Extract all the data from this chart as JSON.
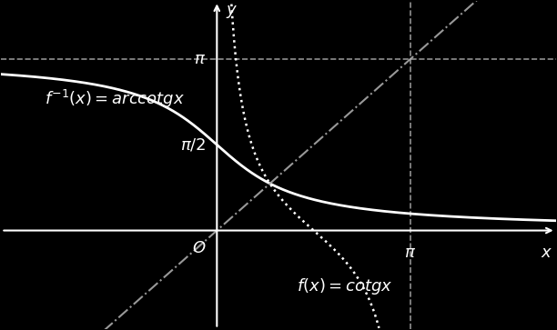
{
  "background_color": "#000000",
  "axis_color": "#ffffff",
  "curve_arccotg_color": "#ffffff",
  "curve_cotg_color": "#ffffff",
  "diagonal_color": "#aaaaaa",
  "dashed_line_color": "#aaaaaa",
  "xlim": [
    -3.5,
    5.5
  ],
  "ylim": [
    -1.8,
    4.2
  ],
  "origin_x": 0,
  "origin_y": 0,
  "pi_val": 3.14159265358979,
  "label_arccotg": "$f^{-1}(x) = arccotgx$",
  "label_cotg": "$f(x) = cotgx$",
  "label_pi": "$\\pi$",
  "label_pi2": "$\\pi/2$",
  "label_O": "$O$",
  "label_x": "$x$",
  "label_y": "$y$",
  "title_fontsize": 14,
  "label_fontsize": 13
}
